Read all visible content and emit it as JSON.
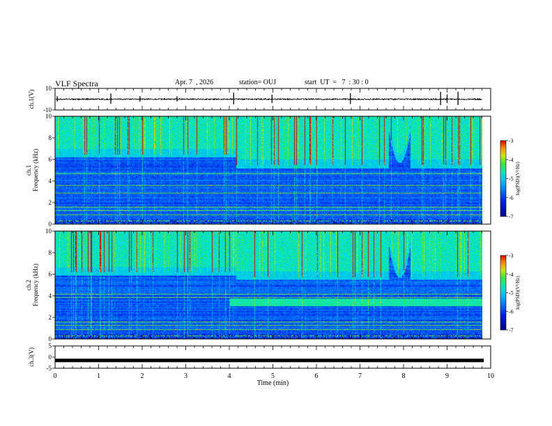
{
  "header": {
    "title": "VLF Spectra",
    "date": "Apr. 7  , 2026",
    "station": "station= OUJ",
    "start": "start  UT  =   7  : 30 : 0"
  },
  "colors": {
    "background": "#ffffff",
    "axis": "#000000",
    "spectrogram_low": "#0010c0",
    "spectrogram_high": "#ff2000"
  },
  "chart_data": [
    {
      "type": "line",
      "id": "ch1-waveform",
      "ylabel": "ch.1(V)",
      "ylim": [
        -10,
        10
      ],
      "ytick_labels": [
        "10",
        "-10"
      ],
      "xlim": [
        0,
        10
      ],
      "baseline": 0,
      "noise_amplitude": 0.6,
      "spikes_min": [
        0.05,
        1.28,
        1.95,
        2.8,
        4.1,
        4.98,
        6.78,
        8.85,
        9.0,
        9.25
      ],
      "grid": false
    },
    {
      "type": "heatmap",
      "id": "ch1-spectrogram",
      "ylabel_channel": "ch.1",
      "ylabel": "Frequency  (kHz)",
      "ylim": [
        0,
        10
      ],
      "ytick_labels": [
        "0",
        "2",
        "4",
        "6",
        "8",
        "10"
      ],
      "xlim": [
        0,
        9.8
      ],
      "colorbar": {
        "label": "log(PSD)(V²/Hz)",
        "range": [
          -7,
          -3
        ],
        "tick_labels": [
          "-3",
          "-4",
          "-5",
          "-6",
          "-7"
        ]
      },
      "noise_band_top_khz": [
        {
          "from_min": 0,
          "to_min": 4.15,
          "khz": 6.5
        },
        {
          "from_min": 4.15,
          "to_min": 9.8,
          "khz": 5.5
        }
      ],
      "whistler_dip": {
        "center_min": 7.9,
        "bottom_khz": 6.0
      },
      "bright_lines_khz": [
        0.3,
        0.9,
        1.3,
        1.6,
        2.9,
        3.6,
        4.7
      ]
    },
    {
      "type": "heatmap",
      "id": "ch2-spectrogram",
      "ylabel_channel": "ch.2",
      "ylabel": "Frequency  (kHz)",
      "ylim": [
        0,
        10
      ],
      "ytick_labels": [
        "0",
        "2",
        "4",
        "6",
        "8",
        "10"
      ],
      "xlim": [
        0,
        9.8
      ],
      "colorbar": {
        "label": "log(PSD)(V²/Hz)",
        "range": [
          -7,
          -3
        ],
        "tick_labels": [
          "-3",
          "-4",
          "-5",
          "-6",
          "-7"
        ]
      },
      "noise_band_top_khz": [
        {
          "from_min": 0,
          "to_min": 4.15,
          "khz": 6.2
        },
        {
          "from_min": 4.15,
          "to_min": 9.8,
          "khz": 5.8
        }
      ],
      "secondary_band": {
        "from_min": 4.0,
        "to_min": 9.8,
        "khz": 3.4
      },
      "whistler_dip": {
        "center_min": 7.9,
        "bottom_khz": 6.0
      },
      "bright_lines_khz": [
        0.3,
        0.9,
        1.3,
        1.6,
        3.9,
        4.2
      ]
    },
    {
      "type": "line",
      "id": "ch3-waveform",
      "ylabel": "ch.3(V)",
      "ylim": [
        -5,
        5
      ],
      "ytick_labels": [
        "5",
        "0",
        "-5"
      ],
      "xlim": [
        0,
        10
      ],
      "xlabel": "Time  (min)",
      "xtick_labels": [
        "0",
        "1",
        "2",
        "3",
        "4",
        "5",
        "6",
        "7",
        "8",
        "9",
        "10"
      ],
      "values_constant": -1.5
    }
  ]
}
